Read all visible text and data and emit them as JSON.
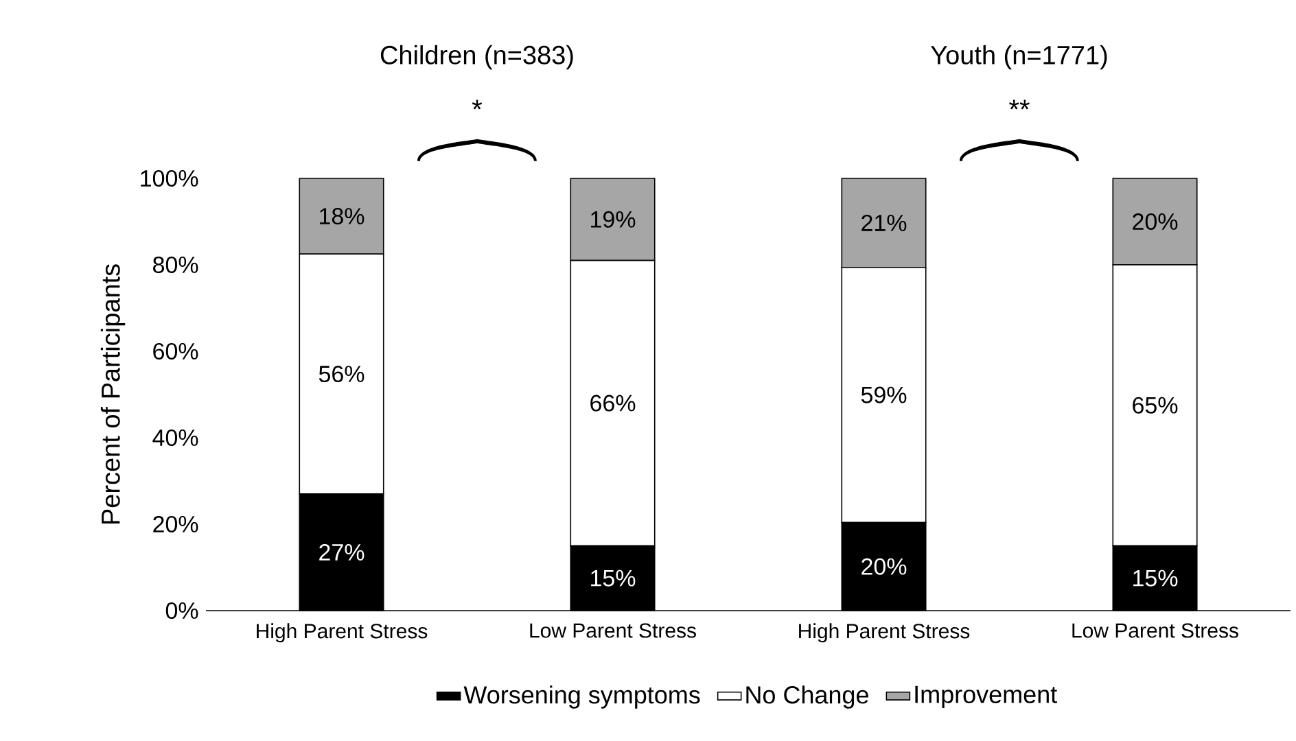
{
  "chart_data": {
    "type": "bar",
    "stacked": true,
    "ylabel": "Percent of Participants",
    "categories": [
      "High Parent Stress",
      "Low Parent Stress",
      "High Parent Stress",
      "Low Parent Stress"
    ],
    "series": [
      {
        "name": "Worsening symptoms",
        "color": "#000000",
        "values": [
          27,
          15,
          20.4,
          15
        ],
        "value_labels": [
          "27%",
          "15%",
          "20%",
          "15%"
        ]
      },
      {
        "name": "No Change",
        "color": "#ffffff",
        "values": [
          55.5,
          66,
          59,
          65
        ],
        "value_labels": [
          "56%",
          "66%",
          "59%",
          "65%"
        ]
      },
      {
        "name": "Improvement",
        "color": "#a6a6a6",
        "values": [
          17.5,
          19,
          20.6,
          20
        ],
        "value_labels": [
          "18%",
          "19%",
          "21%",
          "20%"
        ]
      }
    ],
    "ylim": [
      0,
      100
    ],
    "yticks": [
      {
        "value": 0,
        "label": "0%"
      },
      {
        "value": 20,
        "label": "20%"
      },
      {
        "value": 40,
        "label": "40%"
      },
      {
        "value": 60,
        "label": "60%"
      },
      {
        "value": 80,
        "label": "80%"
      },
      {
        "value": 100,
        "label": "100%"
      }
    ],
    "annotations": [
      "Children (n=383)",
      "*",
      "Youth (n=1771)",
      "**"
    ],
    "legend": "bottom",
    "grid": false
  }
}
